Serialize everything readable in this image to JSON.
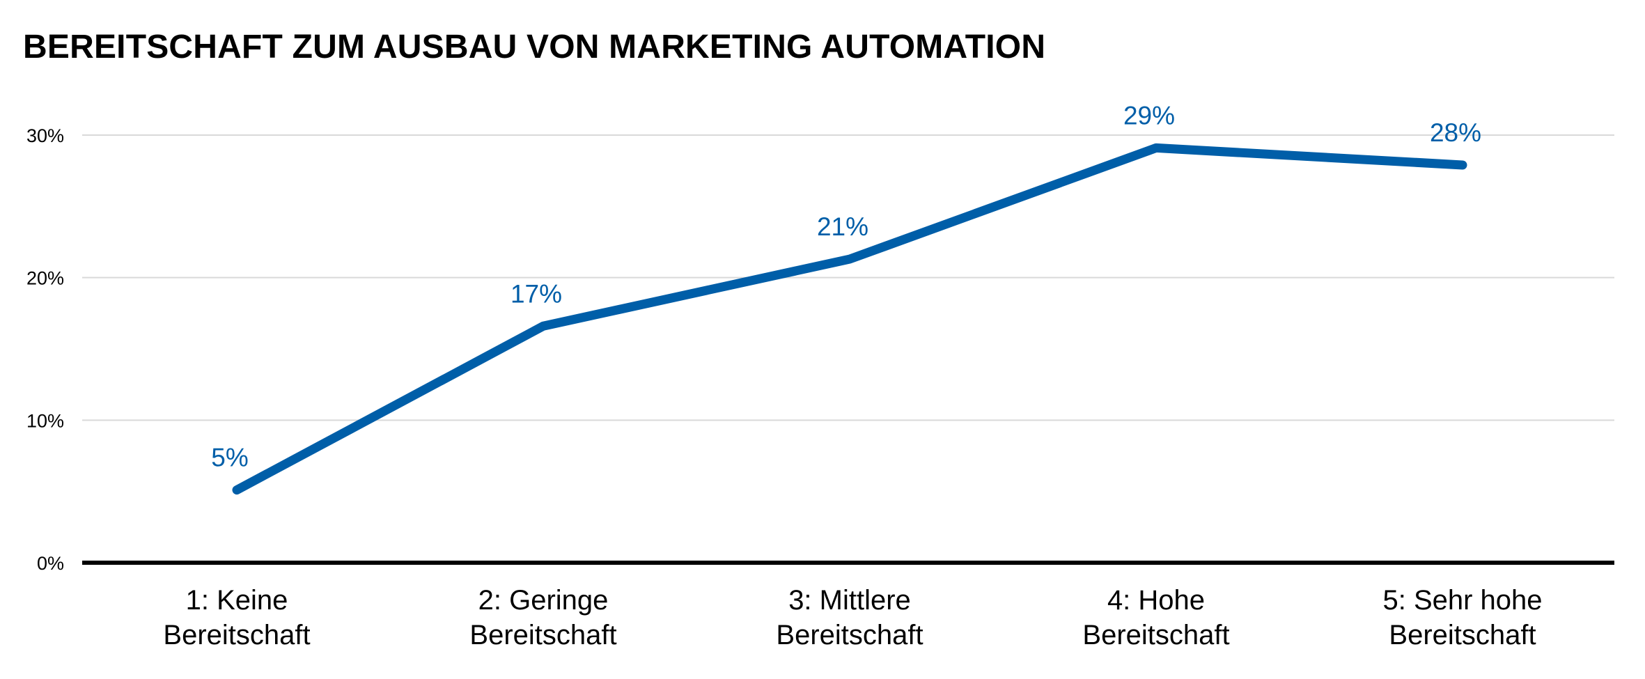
{
  "chart_data": {
    "type": "line",
    "title": "BEREITSCHAFT ZUM AUSBAU VON MARKETING AUTOMATION",
    "xlabel": "",
    "ylabel": "",
    "categories": [
      [
        "1: Keine",
        "Bereitschaft"
      ],
      [
        "2: Geringe",
        "Bereitschaft"
      ],
      [
        "3: Mittlere",
        "Bereitschaft"
      ],
      [
        "4: Hohe",
        "Bereitschaft"
      ],
      [
        "5: Sehr hohe",
        "Bereitschaft"
      ]
    ],
    "series": [
      {
        "values": [
          5.1,
          16.6,
          21.3,
          29.1,
          27.9
        ],
        "labels": [
          "5%",
          "17%",
          "21%",
          "29%",
          "28%"
        ],
        "color": "#005ea8"
      }
    ],
    "ylim": [
      0,
      30
    ],
    "yticks": [
      0,
      10,
      20,
      30
    ],
    "ytick_labels": [
      "0%",
      "10%",
      "20%",
      "30%"
    ],
    "grid": true,
    "gridline_color": "#d9d9d9",
    "axis_color": "#000000"
  }
}
